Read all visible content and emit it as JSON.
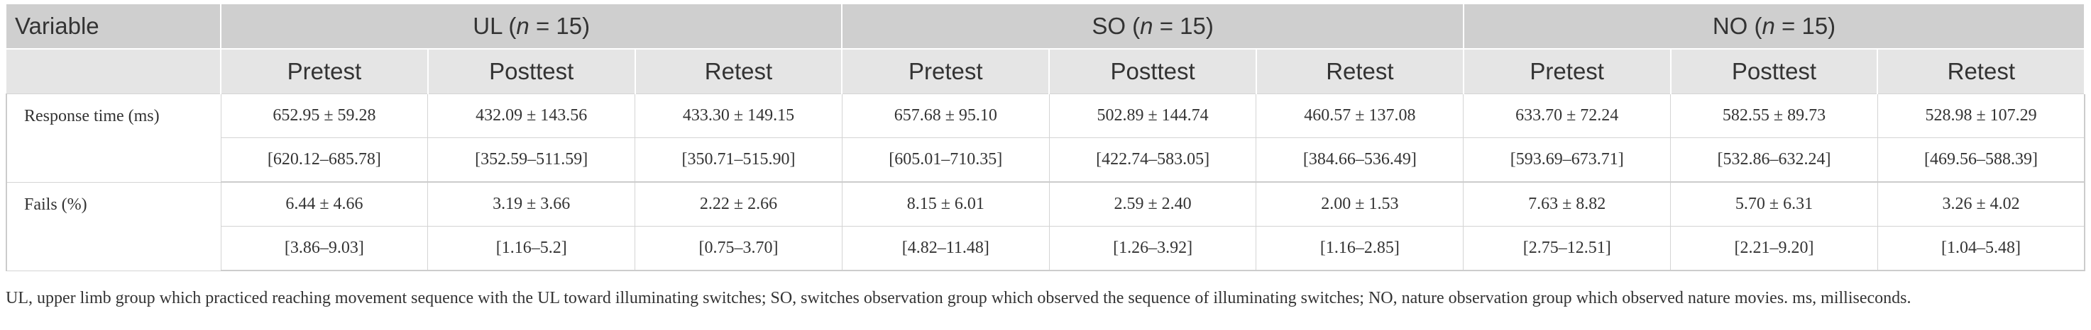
{
  "header": {
    "variable": "Variable",
    "groups": [
      {
        "name": [
          "UL (",
          "n",
          " = 15)"
        ],
        "subheaders": [
          "Pretest",
          "Posttest",
          "Retest"
        ]
      },
      {
        "name": [
          "SO (",
          "n",
          " = 15)"
        ],
        "subheaders": [
          "Pretest",
          "Posttest",
          "Retest"
        ]
      },
      {
        "name": [
          "NO (",
          "n",
          " = 15)"
        ],
        "subheaders": [
          "Pretest",
          "Posttest",
          "Retest"
        ]
      }
    ]
  },
  "table": {
    "rows": [
      {
        "label": "Response time (ms)",
        "means": [
          "652.95 ± 59.28",
          "432.09 ± 143.56",
          "433.30 ± 149.15",
          "657.68 ± 95.10",
          "502.89 ± 144.74",
          "460.57 ± 137.08",
          "633.70 ± 72.24",
          "582.55 ± 89.73",
          "528.98 ± 107.29"
        ],
        "cis": [
          "[620.12–685.78]",
          "[352.59–511.59]",
          "[350.71–515.90]",
          "[605.01–710.35]",
          "[422.74–583.05]",
          "[384.66–536.49]",
          "[593.69–673.71]",
          "[532.86–632.24]",
          "[469.56–588.39]"
        ]
      },
      {
        "label": "Fails (%)",
        "means": [
          "6.44 ± 4.66",
          "3.19 ± 3.66",
          "2.22 ± 2.66",
          "8.15 ± 6.01",
          "2.59 ± 2.40",
          "2.00 ± 1.53",
          "7.63 ± 8.82",
          "5.70 ± 6.31",
          "3.26 ± 4.02"
        ],
        "cis": [
          "[3.86–9.03]",
          "[1.16–5.2]",
          "[0.75–3.70]",
          "[4.82–11.48]",
          "[1.26–3.92]",
          "[1.16–2.85]",
          "[2.75–12.51]",
          "[2.21–9.20]",
          "[1.04–5.48]"
        ]
      }
    ]
  },
  "footnote": "UL, upper limb group which practiced reaching movement sequence with the UL toward illuminating switches; SO, switches observation group which observed the sequence of illuminating switches; NO, nature observation group which observed nature movies. ms, milliseconds."
}
